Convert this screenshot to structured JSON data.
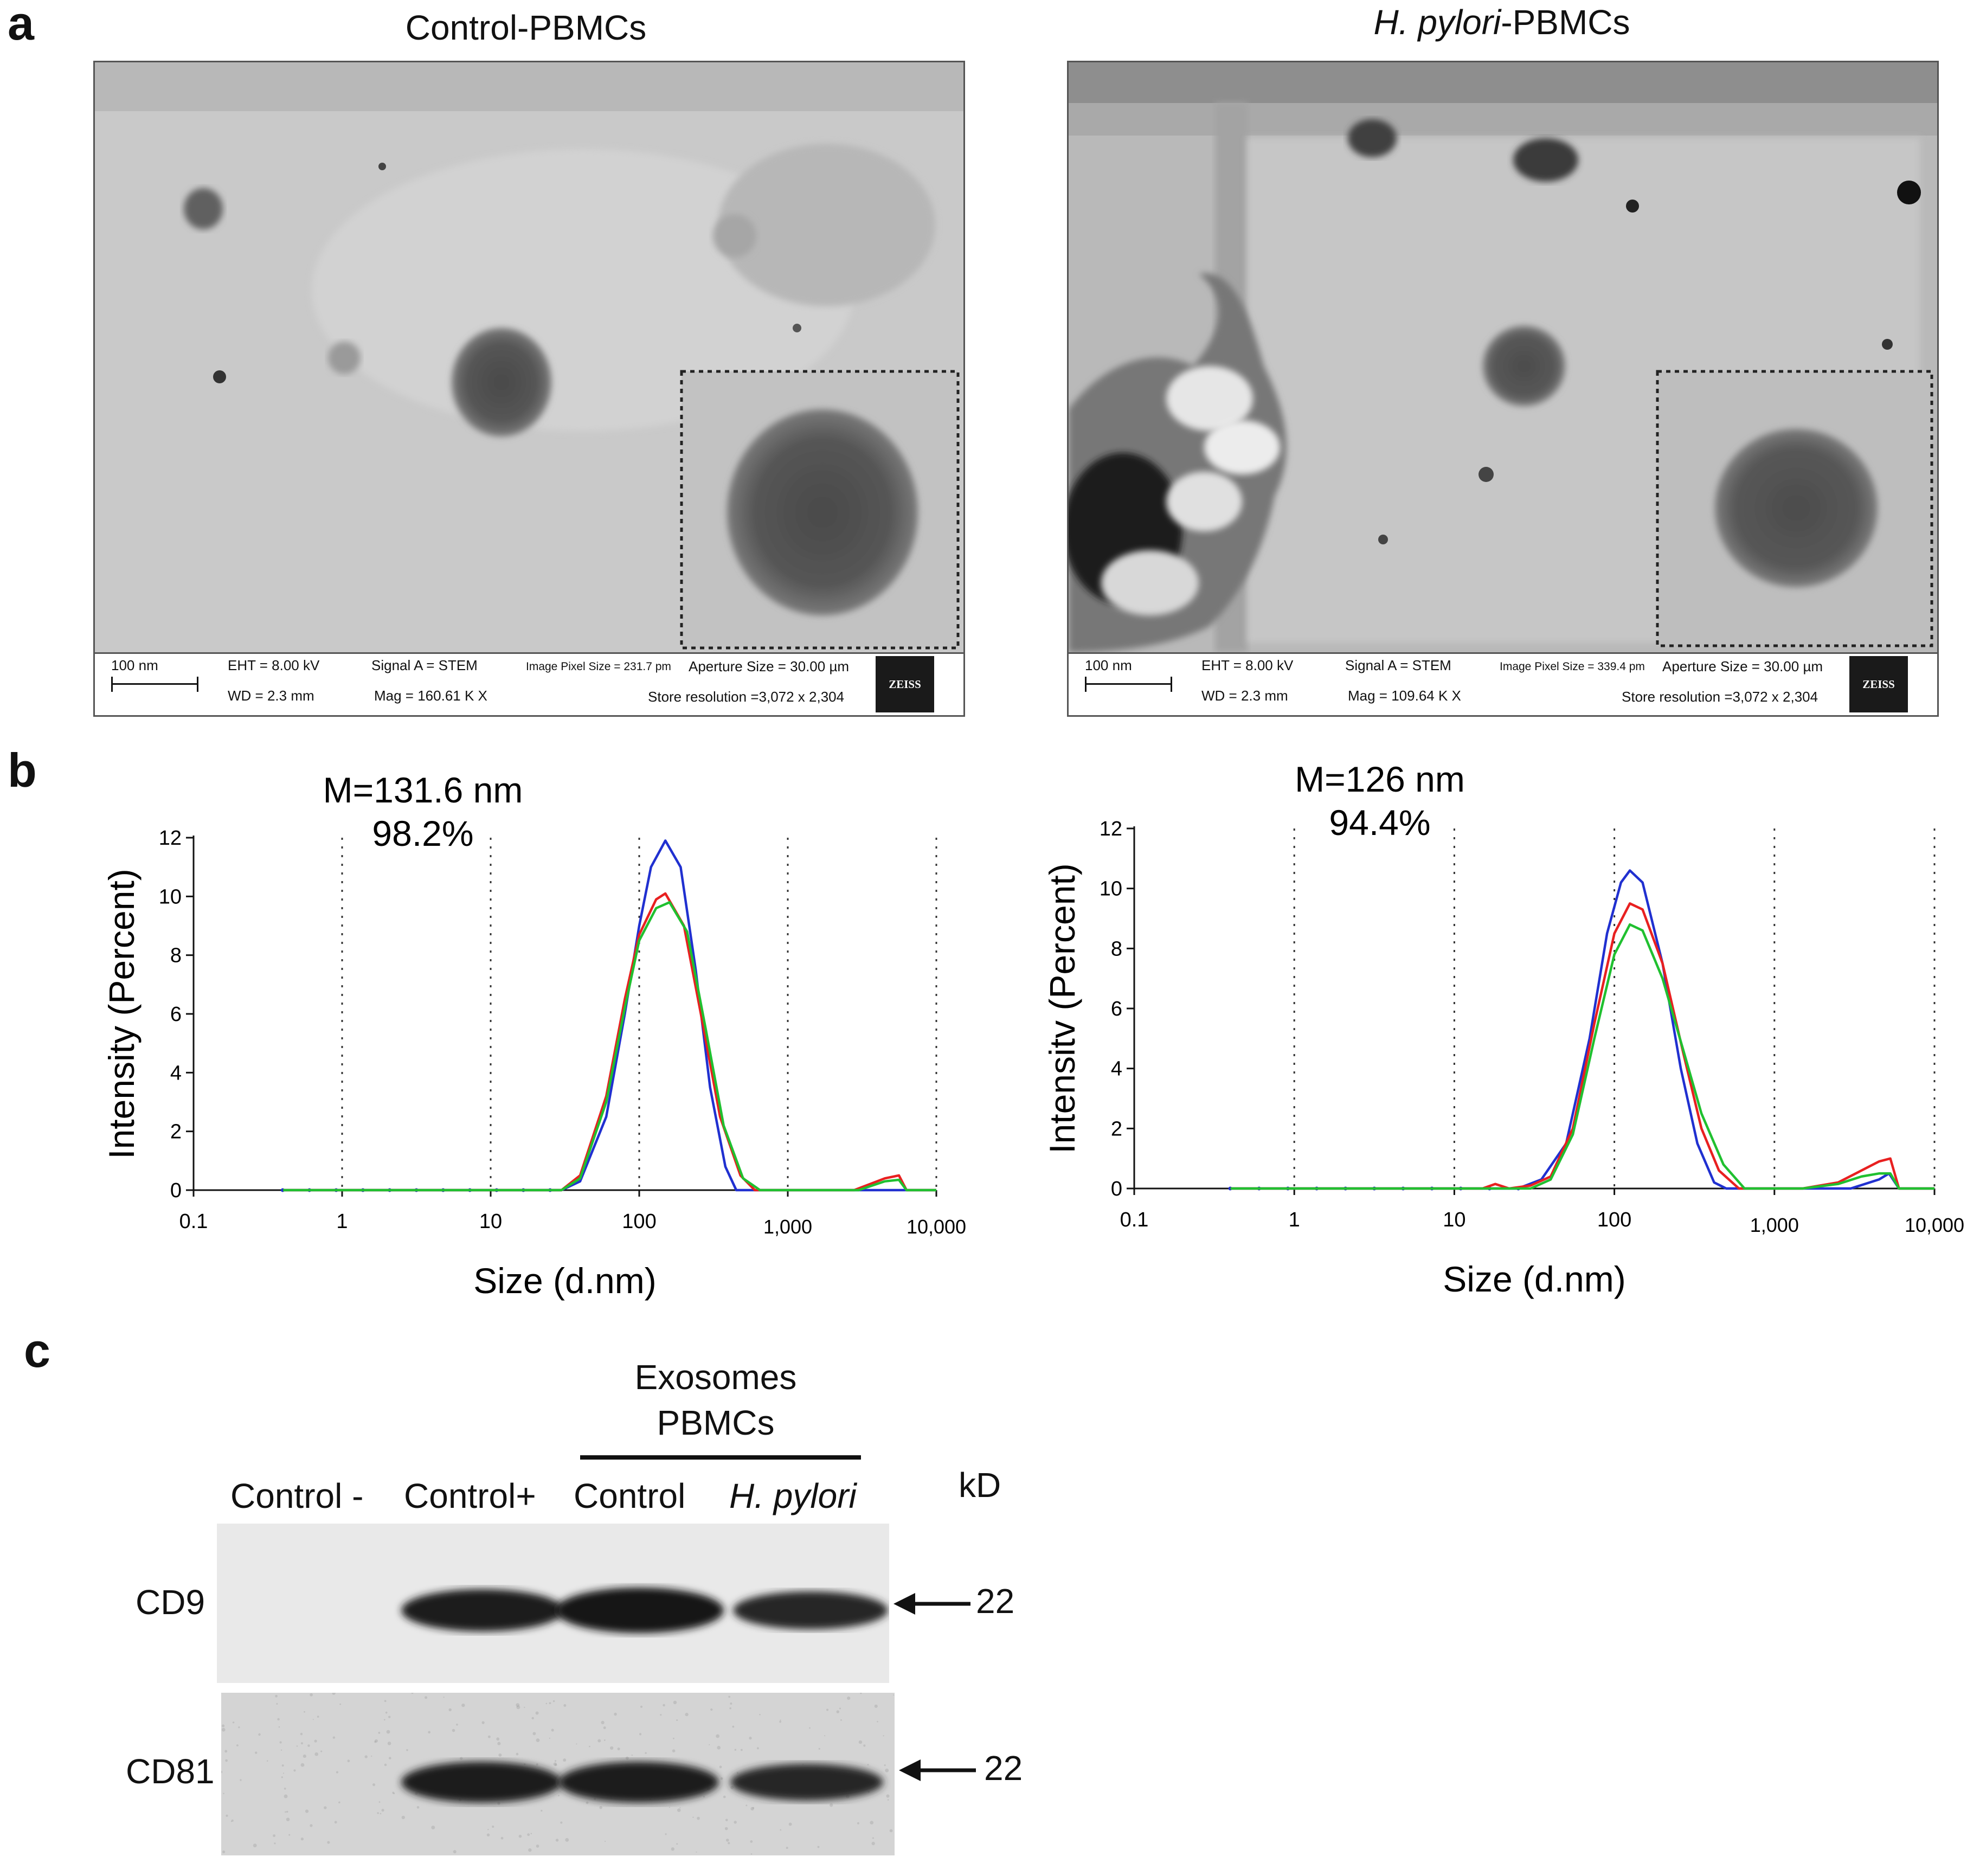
{
  "panels": {
    "a": "a",
    "b": "b",
    "c": "c"
  },
  "em": [
    {
      "title_italic": "",
      "title_rest": "Control-PBMCs",
      "info": {
        "scale": "100 nm",
        "eht": "EHT =  8.00 kV",
        "wd": "WD =  2.3 mm",
        "signal": "Signal A = STEM",
        "mag": "Mag =  160.61 K X",
        "pixel": "Image Pixel Size = 231.7 pm",
        "aperture": "Aperture Size = 30.00 µm",
        "store": "Store resolution =3,072 x 2,304",
        "logo": "ZEISS"
      }
    },
    {
      "title_italic": "H. pylori",
      "title_rest": "-PBMCs",
      "info": {
        "scale": "100 nm",
        "eht": "EHT =  8.00 kV",
        "wd": "WD =  2.3 mm",
        "signal": "Signal A = STEM",
        "mag": "Mag =  109.64 K X",
        "pixel": "Image Pixel Size = 339.4 pm",
        "aperture": "Aperture Size = 30.00 µm",
        "store": "Store resolution =3,072 x 2,304",
        "logo": "ZEISS"
      }
    }
  ],
  "chart_data": [
    {
      "type": "line",
      "annotation_mean": "M=131.6 nm",
      "annotation_pct": "98.2%",
      "xlabel": "Size (d.nm)",
      "ylabel": "Intensity (Percent)",
      "xscale": "log",
      "xlim": [
        0.1,
        10000
      ],
      "ylim": [
        0,
        12
      ],
      "xticks": [
        "0.1",
        "1",
        "10",
        "100",
        "1,000",
        "10,000"
      ],
      "yticks": [
        "0",
        "2",
        "4",
        "6",
        "8",
        "10",
        "12"
      ],
      "grid": "vertical dotted at decades",
      "series": [
        {
          "color": "#2030d0",
          "points": [
            [
              0.4,
              0
            ],
            [
              30,
              0
            ],
            [
              40,
              0.3
            ],
            [
              60,
              2.5
            ],
            [
              80,
              6
            ],
            [
              100,
              9
            ],
            [
              120,
              11
            ],
            [
              150,
              11.9
            ],
            [
              190,
              11
            ],
            [
              240,
              7.5
            ],
            [
              300,
              3.5
            ],
            [
              380,
              0.8
            ],
            [
              450,
              0
            ],
            [
              10000,
              0
            ]
          ]
        },
        {
          "color": "#e82020",
          "points": [
            [
              0.4,
              0
            ],
            [
              30,
              0
            ],
            [
              40,
              0.5
            ],
            [
              60,
              3.2
            ],
            [
              80,
              6.5
            ],
            [
              100,
              8.7
            ],
            [
              130,
              9.9
            ],
            [
              150,
              10.1
            ],
            [
              200,
              9
            ],
            [
              260,
              6
            ],
            [
              350,
              2.5
            ],
            [
              480,
              0.5
            ],
            [
              600,
              0
            ],
            [
              2800,
              0
            ],
            [
              4500,
              0.4
            ],
            [
              5600,
              0.5
            ],
            [
              6300,
              0
            ],
            [
              10000,
              0
            ]
          ]
        },
        {
          "color": "#20c030",
          "points": [
            [
              0.4,
              0
            ],
            [
              30,
              0
            ],
            [
              40,
              0.4
            ],
            [
              60,
              3
            ],
            [
              80,
              6.2
            ],
            [
              100,
              8.5
            ],
            [
              130,
              9.6
            ],
            [
              160,
              9.8
            ],
            [
              210,
              8.8
            ],
            [
              280,
              5.5
            ],
            [
              370,
              2.2
            ],
            [
              500,
              0.4
            ],
            [
              650,
              0
            ],
            [
              3000,
              0
            ],
            [
              4500,
              0.3
            ],
            [
              5600,
              0.35
            ],
            [
              6300,
              0
            ],
            [
              10000,
              0
            ]
          ]
        }
      ]
    },
    {
      "type": "line",
      "annotation_mean": "M=126 nm",
      "annotation_pct": "94.4%",
      "xlabel": "Size (d.nm)",
      "ylabel": "Intensitv (Percent)",
      "xscale": "log",
      "xlim": [
        0.1,
        10000
      ],
      "ylim": [
        0,
        12
      ],
      "xticks": [
        "0.1",
        "1",
        "10",
        "100",
        "1,000",
        "10,000"
      ],
      "yticks": [
        "0",
        "2",
        "4",
        "6",
        "8",
        "10",
        "12"
      ],
      "grid": "vertical dotted at decades",
      "series": [
        {
          "color": "#2030d0",
          "points": [
            [
              0.4,
              0
            ],
            [
              25,
              0
            ],
            [
              35,
              0.3
            ],
            [
              50,
              1.5
            ],
            [
              70,
              5
            ],
            [
              90,
              8.5
            ],
            [
              110,
              10.2
            ],
            [
              125,
              10.6
            ],
            [
              150,
              10.2
            ],
            [
              200,
              7.5
            ],
            [
              260,
              4
            ],
            [
              330,
              1.5
            ],
            [
              420,
              0.2
            ],
            [
              500,
              0
            ],
            [
              3000,
              0
            ],
            [
              4500,
              0.3
            ],
            [
              5200,
              0.5
            ],
            [
              6000,
              0
            ],
            [
              10000,
              0
            ]
          ]
        },
        {
          "color": "#e82020",
          "points": [
            [
              0.4,
              0
            ],
            [
              15,
              0
            ],
            [
              18,
              0.15
            ],
            [
              22,
              0
            ],
            [
              30,
              0.1
            ],
            [
              40,
              0.4
            ],
            [
              55,
              2
            ],
            [
              75,
              5.5
            ],
            [
              100,
              8.5
            ],
            [
              125,
              9.5
            ],
            [
              150,
              9.3
            ],
            [
              200,
              7.5
            ],
            [
              270,
              4.5
            ],
            [
              350,
              2
            ],
            [
              450,
              0.6
            ],
            [
              600,
              0
            ],
            [
              1500,
              0
            ],
            [
              2500,
              0.2
            ],
            [
              3500,
              0.6
            ],
            [
              4500,
              0.9
            ],
            [
              5300,
              1
            ],
            [
              6000,
              0
            ],
            [
              10000,
              0
            ]
          ]
        },
        {
          "color": "#20c030",
          "points": [
            [
              0.4,
              0
            ],
            [
              30,
              0
            ],
            [
              40,
              0.3
            ],
            [
              55,
              1.8
            ],
            [
              75,
              5
            ],
            [
              100,
              7.8
            ],
            [
              125,
              8.8
            ],
            [
              150,
              8.6
            ],
            [
              200,
              7
            ],
            [
              270,
              4.6
            ],
            [
              350,
              2.5
            ],
            [
              480,
              0.8
            ],
            [
              650,
              0
            ],
            [
              1500,
              0
            ],
            [
              2500,
              0.15
            ],
            [
              3500,
              0.4
            ],
            [
              4500,
              0.5
            ],
            [
              5300,
              0.5
            ],
            [
              6000,
              0
            ],
            [
              10000,
              0
            ]
          ]
        }
      ]
    }
  ],
  "blot": {
    "group_line1": "Exosomes",
    "group_line2": "PBMCs",
    "lanes": [
      "Control -",
      "Control+",
      "Control",
      "H. pylori"
    ],
    "kd": "kD",
    "rows": [
      {
        "label": "CD9",
        "kd": "22",
        "band_intensity": [
          0,
          0.85,
          1.0,
          0.65
        ]
      },
      {
        "label": "CD81",
        "kd": "22",
        "band_intensity": [
          0,
          0.8,
          0.8,
          0.6
        ]
      }
    ]
  }
}
